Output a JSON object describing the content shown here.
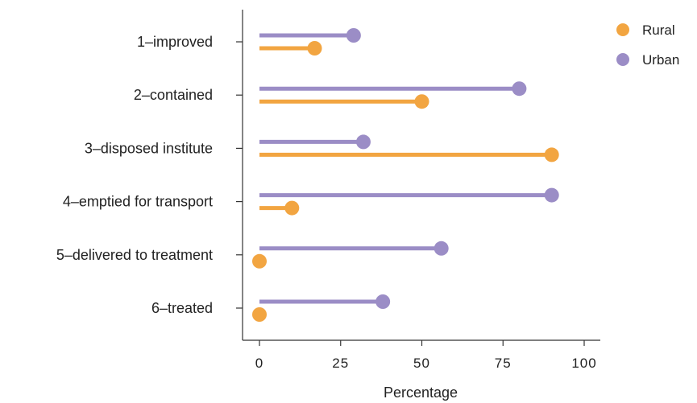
{
  "chart_data": {
    "type": "lollipop",
    "categories": [
      "1–improved",
      "2–contained",
      "3–disposed institute",
      "4–emptied for transport",
      "5–delivered to treatment",
      "6–treated"
    ],
    "series": [
      {
        "name": "Urban",
        "color": "#9b8dc6",
        "values": [
          29,
          80,
          32,
          90,
          56,
          38
        ]
      },
      {
        "name": "Rural",
        "color": "#f2a541",
        "values": [
          17,
          50,
          90,
          10,
          0,
          0
        ]
      }
    ],
    "xlabel": "Percentage",
    "ylabel": "",
    "xlim": [
      0,
      100
    ],
    "xticks": [
      0,
      25,
      50,
      75,
      100
    ],
    "legend": {
      "position": "top-right",
      "items": [
        {
          "label": "Rural",
          "color": "#f2a541"
        },
        {
          "label": "Urban",
          "color": "#9b8dc6"
        }
      ]
    },
    "grid": false
  }
}
